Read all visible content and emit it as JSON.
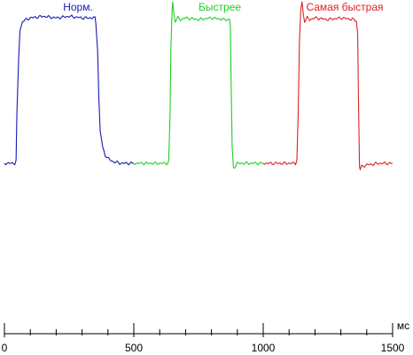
{
  "chart_data": {
    "type": "line",
    "x_unit": "мс",
    "xlim": [
      0,
      1500
    ],
    "x_ticks": [
      {
        "value": 0,
        "label": "0"
      },
      {
        "value": 500,
        "label": "500"
      },
      {
        "value": 1000,
        "label": "1000"
      },
      {
        "value": 1500,
        "label": "1500"
      }
    ],
    "x_minor_step": 100,
    "grid": false,
    "series": [
      {
        "name": "Норм.",
        "color": "#1a1ab4",
        "x": [
          0,
          40,
          45,
          48,
          55,
          60,
          70,
          100,
          150,
          200,
          250,
          300,
          350,
          353,
          360,
          365,
          370,
          380,
          390,
          400,
          410,
          420,
          450,
          500
        ],
        "y": [
          0,
          0,
          2,
          30,
          65,
          82,
          88,
          90,
          91,
          90,
          91,
          90,
          90,
          87,
          70,
          40,
          20,
          10,
          5,
          3,
          2,
          1,
          0,
          0
        ]
      },
      {
        "name": "Быстрее",
        "color": "#22cc22",
        "x": [
          500,
          550,
          600,
          630,
          635,
          640,
          643,
          648,
          650,
          655,
          660,
          670,
          680,
          700,
          750,
          800,
          850,
          870,
          873,
          876,
          880,
          885,
          890,
          900,
          950,
          1000
        ],
        "y": [
          0,
          0,
          0,
          0,
          2,
          30,
          70,
          95,
          100,
          92,
          88,
          90,
          89,
          90,
          89,
          90,
          89,
          89,
          85,
          50,
          10,
          -3,
          -2,
          0,
          0,
          0
        ]
      },
      {
        "name": "Самая быстрая",
        "color": "#dd2222",
        "x": [
          1000,
          1050,
          1100,
          1125,
          1130,
          1135,
          1140,
          1145,
          1150,
          1155,
          1160,
          1170,
          1180,
          1200,
          1250,
          1300,
          1350,
          1360,
          1365,
          1368,
          1372,
          1375,
          1380,
          1400,
          1450,
          1500
        ],
        "y": [
          0,
          0,
          0,
          0,
          2,
          30,
          75,
          95,
          100,
          92,
          88,
          90,
          89,
          90,
          89,
          90,
          89,
          88,
          80,
          40,
          -3,
          -4,
          -2,
          -1,
          0,
          0
        ]
      }
    ]
  }
}
